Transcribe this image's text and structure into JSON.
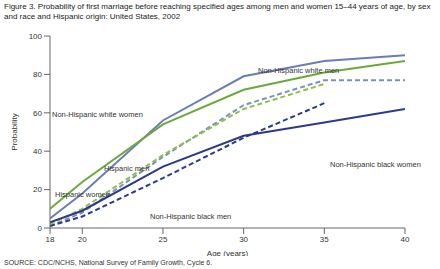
{
  "chart_data": {
    "type": "line",
    "title": "Figure 3. Probability of first marriage before reaching specified ages among men and women 15–44 years of age, by sex and race and Hispanic origin: United States, 2002",
    "source": "SOURCE: CDC/NCHS, National Survey of Family Growth, Cycle 6.",
    "x_label": "Age (years)",
    "y_label": "Probability",
    "x": [
      18,
      20,
      25,
      30,
      35,
      40
    ],
    "xlim": [
      18,
      40
    ],
    "xticks": [
      18,
      20,
      25,
      30,
      35,
      40
    ],
    "ylim": [
      0,
      100
    ],
    "yticks": [
      0,
      20,
      40,
      60,
      80,
      100
    ],
    "grid": false,
    "series": [
      {
        "name": "Non-Hispanic white men",
        "color": "#6a7db5",
        "line_style": "solid",
        "values": [
          5,
          18,
          56,
          79,
          87,
          90
        ]
      },
      {
        "name": "Non-Hispanic white women",
        "color": "#6aaa3a",
        "line_style": "solid",
        "values": [
          10,
          24,
          54,
          72,
          81,
          87
        ]
      },
      {
        "name": "Hispanic men",
        "color": "#7d8ec4",
        "line_style": "dashed",
        "values": [
          1,
          8,
          37,
          64,
          77,
          77
        ]
      },
      {
        "name": "Hispanic women",
        "color": "#8cc04a",
        "line_style": "dashed",
        "values": [
          2,
          10,
          38,
          62,
          75,
          null
        ]
      },
      {
        "name": "Non-Hispanic black women",
        "color": "#2b3a8c",
        "line_style": "solid",
        "values": [
          3,
          9,
          32,
          48,
          55,
          62
        ]
      },
      {
        "name": "Non-Hispanic black men",
        "color": "#2b3a8c",
        "line_style": "dashed",
        "values": [
          1,
          6,
          26,
          47,
          65,
          null
        ]
      }
    ]
  }
}
